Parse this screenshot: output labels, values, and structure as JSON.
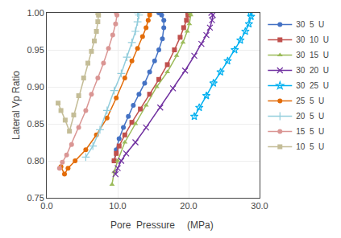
{
  "chart_data": {
    "type": "line",
    "xlabel": "Pore  Pressure",
    "annotations": [
      "(MPa)"
    ],
    "ylabel": "Lateral Vp Ratio",
    "xlim": [
      0.0,
      30.0
    ],
    "ylim": [
      0.75,
      1.0
    ],
    "xticks": [
      {
        "value": 0.0,
        "label": "0.0"
      },
      {
        "value": 10.0,
        "label": "10.0"
      },
      {
        "value": 20.0,
        "label": "20.0"
      },
      {
        "value": 30.0,
        "label": "30.0"
      }
    ],
    "yticks": [
      0.75,
      {
        "value": 0.8,
        "label": "0.80"
      },
      0.85,
      {
        "value": 0.9,
        "label": "0.90"
      },
      0.95,
      {
        "value": 1.0,
        "label": "1.00"
      }
    ],
    "grid": true,
    "legend": "right",
    "series": [
      {
        "name": "30  5  U",
        "color": "#4472C4",
        "marker": "circle",
        "x": [
          15.8,
          16.2,
          16.5,
          16.5,
          16.3,
          15.8,
          15.2,
          14.5,
          13.8,
          13.0,
          12.2,
          11.5,
          10.8,
          10.2,
          9.8,
          9.5
        ],
        "values": [
          1.0,
          0.997,
          0.99,
          0.98,
          0.965,
          0.95,
          0.935,
          0.92,
          0.905,
          0.89,
          0.875,
          0.86,
          0.845,
          0.83,
          0.815,
          0.8
        ]
      },
      {
        "name": "30  10  U",
        "color": "#C0504D",
        "marker": "square",
        "x": [
          19.9,
          19.9,
          19.7,
          19.3,
          18.8,
          18.0,
          17.0,
          15.8,
          14.5,
          13.2,
          12.0,
          11.0,
          10.2,
          9.8,
          9.5
        ],
        "values": [
          1.0,
          0.997,
          0.99,
          0.98,
          0.967,
          0.95,
          0.93,
          0.91,
          0.89,
          0.87,
          0.852,
          0.835,
          0.82,
          0.81,
          0.8
        ]
      },
      {
        "name": "30  15  U",
        "color": "#9BBB59",
        "marker": "triangle",
        "x": [
          20.2,
          20.3,
          20.1,
          19.8,
          19.2,
          18.3,
          17.0,
          15.5,
          14.0,
          12.5,
          11.0,
          10.0,
          9.5,
          9.2
        ],
        "values": [
          1.0,
          0.997,
          0.985,
          0.975,
          0.96,
          0.942,
          0.92,
          0.9,
          0.875,
          0.85,
          0.825,
          0.8,
          0.785,
          0.768
        ]
      },
      {
        "name": "30  20  U",
        "color": "#7030A0",
        "marker": "x",
        "x": [
          23.2,
          23.4,
          23.3,
          23.0,
          22.5,
          21.8,
          20.8,
          19.5,
          17.8,
          16.0,
          14.0,
          12.5,
          11.2,
          10.5,
          10.0,
          9.7
        ],
        "values": [
          1.0,
          0.997,
          0.99,
          0.98,
          0.97,
          0.958,
          0.942,
          0.922,
          0.898,
          0.872,
          0.845,
          0.825,
          0.81,
          0.8,
          0.79,
          0.782
        ]
      },
      {
        "name": "30  25  U",
        "color": "#00B0F0",
        "marker": "star",
        "x": [
          28.7,
          28.8,
          28.5,
          28.0,
          27.3,
          26.5,
          25.5,
          24.5,
          23.5,
          22.5,
          21.5,
          20.8
        ],
        "values": [
          1.0,
          0.995,
          0.985,
          0.975,
          0.963,
          0.95,
          0.935,
          0.92,
          0.905,
          0.888,
          0.872,
          0.86
        ]
      },
      {
        "name": "25  5  U",
        "color": "#E36C09",
        "marker": "circle",
        "x": [
          14.5,
          14.5,
          14.3,
          14.0,
          13.5,
          12.8,
          12.0,
          11.0,
          9.8,
          8.5,
          7.0,
          5.5,
          4.0,
          3.0,
          2.5,
          2.0
        ],
        "values": [
          1.0,
          0.997,
          0.99,
          0.98,
          0.968,
          0.952,
          0.935,
          0.912,
          0.885,
          0.858,
          0.835,
          0.815,
          0.8,
          0.79,
          0.782,
          0.792
        ]
      },
      {
        "name": "20  5  U",
        "color": "#92CDDC",
        "marker": "plus",
        "x": [
          12.8,
          13.0,
          12.8,
          12.5,
          12.0,
          11.3,
          10.5,
          9.5,
          8.5,
          7.5,
          6.5,
          5.5
        ],
        "values": [
          1.0,
          0.997,
          0.988,
          0.975,
          0.96,
          0.94,
          0.918,
          0.895,
          0.868,
          0.842,
          0.82,
          0.805
        ]
      },
      {
        "name": "15  5  U",
        "color": "#DA9694",
        "marker": "circle",
        "x": [
          9.8,
          9.9,
          9.7,
          9.3,
          8.7,
          8.0,
          7.2,
          6.3,
          5.5,
          4.5,
          3.5,
          2.8,
          2.2,
          1.8
        ],
        "values": [
          1.0,
          0.997,
          0.985,
          0.97,
          0.952,
          0.932,
          0.912,
          0.89,
          0.868,
          0.845,
          0.822,
          0.808,
          0.798,
          0.79
        ]
      },
      {
        "name": "10  5  U",
        "color": "#C4BD97",
        "marker": "square",
        "x": [
          7.2,
          7.3,
          7.2,
          7.0,
          6.7,
          6.3,
          5.8,
          5.2,
          4.5,
          3.8,
          3.2,
          2.6,
          2.0,
          1.6
        ],
        "values": [
          1.0,
          0.997,
          0.988,
          0.975,
          0.962,
          0.948,
          0.932,
          0.912,
          0.888,
          0.862,
          0.84,
          0.855,
          0.868,
          0.878
        ]
      }
    ]
  }
}
